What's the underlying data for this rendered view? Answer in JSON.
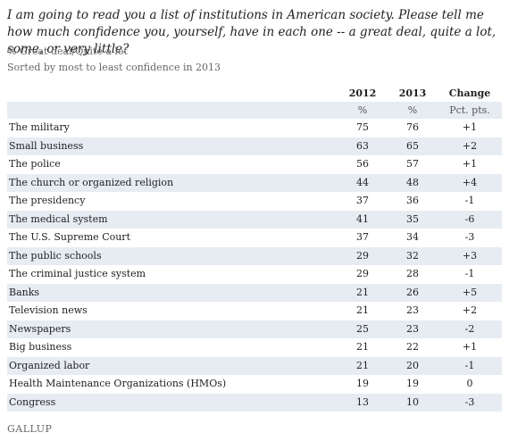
{
  "question": "I am going to read you a list of institutions in American society. Please tell me how much confidence you, yourself, have in each one -- a great deal, quite a lot, some, or very little?",
  "subtitle_1": "% Great deal/Quite a lot",
  "subtitle_2": "Sorted by most to least confidence in 2013",
  "headers": {
    "col_2012": "2012",
    "col_2013": "2013",
    "col_change": "Change"
  },
  "units": {
    "u_2012": "%",
    "u_2013": "%",
    "u_change": "Pct. pts."
  },
  "logo": "GALLUP",
  "chart_data": {
    "type": "table",
    "columns": [
      "2012",
      "2013",
      "Change"
    ],
    "units": [
      "%",
      "%",
      "Pct. pts."
    ],
    "rows": [
      {
        "institution": "The military",
        "y2012": "75",
        "y2013": "76",
        "change": "+1"
      },
      {
        "institution": "Small business",
        "y2012": "63",
        "y2013": "65",
        "change": "+2"
      },
      {
        "institution": "The police",
        "y2012": "56",
        "y2013": "57",
        "change": "+1"
      },
      {
        "institution": "The church or organized religion",
        "y2012": "44",
        "y2013": "48",
        "change": "+4"
      },
      {
        "institution": "The presidency",
        "y2012": "37",
        "y2013": "36",
        "change": "-1"
      },
      {
        "institution": "The medical system",
        "y2012": "41",
        "y2013": "35",
        "change": "-6"
      },
      {
        "institution": "The U.S. Supreme Court",
        "y2012": "37",
        "y2013": "34",
        "change": "-3"
      },
      {
        "institution": "The public schools",
        "y2012": "29",
        "y2013": "32",
        "change": "+3"
      },
      {
        "institution": "The criminal justice system",
        "y2012": "29",
        "y2013": "28",
        "change": "-1"
      },
      {
        "institution": "Banks",
        "y2012": "21",
        "y2013": "26",
        "change": "+5"
      },
      {
        "institution": "Television news",
        "y2012": "21",
        "y2013": "23",
        "change": "+2"
      },
      {
        "institution": "Newspapers",
        "y2012": "25",
        "y2013": "23",
        "change": "-2"
      },
      {
        "institution": "Big business",
        "y2012": "21",
        "y2013": "22",
        "change": "+1"
      },
      {
        "institution": "Organized labor",
        "y2012": "21",
        "y2013": "20",
        "change": "-1"
      },
      {
        "institution": "Health Maintenance Organizations (HMOs)",
        "y2012": "19",
        "y2013": "19",
        "change": "0"
      },
      {
        "institution": "Congress",
        "y2012": "13",
        "y2013": "10",
        "change": "-3"
      }
    ]
  }
}
